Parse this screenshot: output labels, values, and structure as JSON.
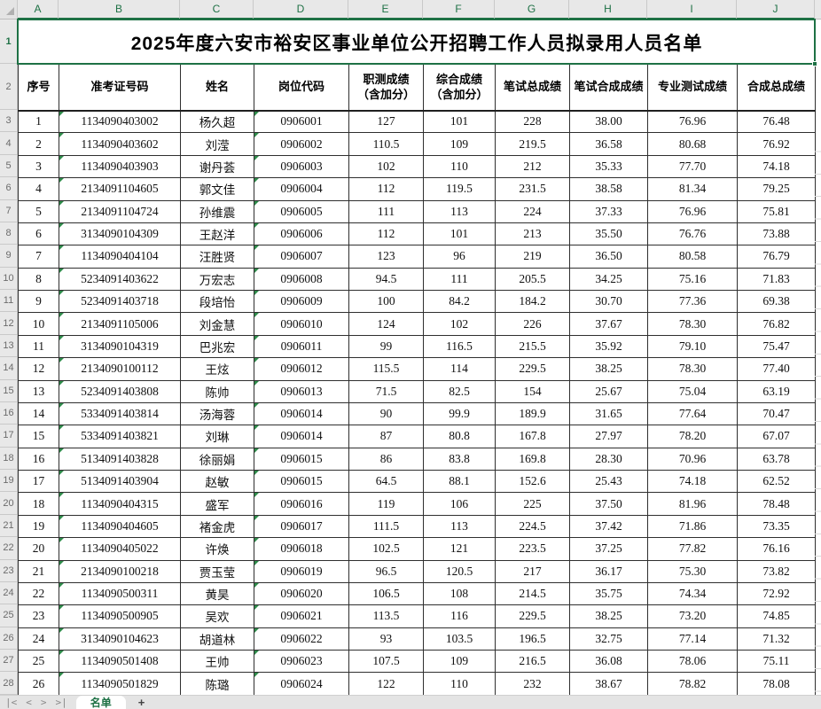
{
  "title": "2025年度六安市裕安区事业单位公开招聘工作人员拟录用人员名单",
  "columns": [
    "A",
    "B",
    "C",
    "D",
    "E",
    "F",
    "G",
    "H",
    "I",
    "J"
  ],
  "row_numbers": [
    "1",
    "2",
    "3",
    "4",
    "5",
    "6",
    "7",
    "8",
    "9",
    "10",
    "11",
    "12",
    "13",
    "14",
    "15",
    "16",
    "17",
    "18",
    "19",
    "20",
    "21",
    "22",
    "23",
    "24",
    "25",
    "26",
    "27",
    "28"
  ],
  "headers": [
    "序号",
    "准考证号码",
    "姓名",
    "岗位代码",
    "职测成绩\n（含加分）",
    "综合成绩\n（含加分）",
    "笔试总成绩",
    "笔试合成成绩",
    "专业测试成绩",
    "合成总成绩"
  ],
  "rows": [
    [
      "1",
      "1134090403002",
      "杨久超",
      "0906001",
      "127",
      "101",
      "228",
      "38.00",
      "76.96",
      "76.48"
    ],
    [
      "2",
      "1134090403602",
      "刘滢",
      "0906002",
      "110.5",
      "109",
      "219.5",
      "36.58",
      "80.68",
      "76.92"
    ],
    [
      "3",
      "1134090403903",
      "谢丹荟",
      "0906003",
      "102",
      "110",
      "212",
      "35.33",
      "77.70",
      "74.18"
    ],
    [
      "4",
      "2134091104605",
      "郭文佳",
      "0906004",
      "112",
      "119.5",
      "231.5",
      "38.58",
      "81.34",
      "79.25"
    ],
    [
      "5",
      "2134091104724",
      "孙维震",
      "0906005",
      "111",
      "113",
      "224",
      "37.33",
      "76.96",
      "75.81"
    ],
    [
      "6",
      "3134090104309",
      "王赵洋",
      "0906006",
      "112",
      "101",
      "213",
      "35.50",
      "76.76",
      "73.88"
    ],
    [
      "7",
      "1134090404104",
      "汪胜贤",
      "0906007",
      "123",
      "96",
      "219",
      "36.50",
      "80.58",
      "76.79"
    ],
    [
      "8",
      "5234091403622",
      "万宏志",
      "0906008",
      "94.5",
      "111",
      "205.5",
      "34.25",
      "75.16",
      "71.83"
    ],
    [
      "9",
      "5234091403718",
      "段培怡",
      "0906009",
      "100",
      "84.2",
      "184.2",
      "30.70",
      "77.36",
      "69.38"
    ],
    [
      "10",
      "2134091105006",
      "刘金慧",
      "0906010",
      "124",
      "102",
      "226",
      "37.67",
      "78.30",
      "76.82"
    ],
    [
      "11",
      "3134090104319",
      "巴兆宏",
      "0906011",
      "99",
      "116.5",
      "215.5",
      "35.92",
      "79.10",
      "75.47"
    ],
    [
      "12",
      "2134090100112",
      "王炫",
      "0906012",
      "115.5",
      "114",
      "229.5",
      "38.25",
      "78.30",
      "77.40"
    ],
    [
      "13",
      "5234091403808",
      "陈帅",
      "0906013",
      "71.5",
      "82.5",
      "154",
      "25.67",
      "75.04",
      "63.19"
    ],
    [
      "14",
      "5334091403814",
      "汤海蓉",
      "0906014",
      "90",
      "99.9",
      "189.9",
      "31.65",
      "77.64",
      "70.47"
    ],
    [
      "15",
      "5334091403821",
      "刘琳",
      "0906014",
      "87",
      "80.8",
      "167.8",
      "27.97",
      "78.20",
      "67.07"
    ],
    [
      "16",
      "5134091403828",
      "徐丽娟",
      "0906015",
      "86",
      "83.8",
      "169.8",
      "28.30",
      "70.96",
      "63.78"
    ],
    [
      "17",
      "5134091403904",
      "赵敏",
      "0906015",
      "64.5",
      "88.1",
      "152.6",
      "25.43",
      "74.18",
      "62.52"
    ],
    [
      "18",
      "1134090404315",
      "盛军",
      "0906016",
      "119",
      "106",
      "225",
      "37.50",
      "81.96",
      "78.48"
    ],
    [
      "19",
      "1134090404605",
      "褚金虎",
      "0906017",
      "111.5",
      "113",
      "224.5",
      "37.42",
      "71.86",
      "73.35"
    ],
    [
      "20",
      "1134090405022",
      "许焕",
      "0906018",
      "102.5",
      "121",
      "223.5",
      "37.25",
      "77.82",
      "76.16"
    ],
    [
      "21",
      "2134090100218",
      "贾玉莹",
      "0906019",
      "96.5",
      "120.5",
      "217",
      "36.17",
      "75.30",
      "73.82"
    ],
    [
      "22",
      "1134090500311",
      "黄昊",
      "0906020",
      "106.5",
      "108",
      "214.5",
      "35.75",
      "74.34",
      "72.92"
    ],
    [
      "23",
      "1134090500905",
      "吴欢",
      "0906021",
      "113.5",
      "116",
      "229.5",
      "38.25",
      "73.20",
      "74.85"
    ],
    [
      "24",
      "3134090104623",
      "胡道林",
      "0906022",
      "93",
      "103.5",
      "196.5",
      "32.75",
      "77.14",
      "71.32"
    ],
    [
      "25",
      "1134090501408",
      "王帅",
      "0906023",
      "107.5",
      "109",
      "216.5",
      "36.08",
      "78.06",
      "75.11"
    ],
    [
      "26",
      "1134090501829",
      "陈璐",
      "0906024",
      "122",
      "110",
      "232",
      "38.67",
      "78.82",
      "78.08"
    ]
  ],
  "sheet_bar": {
    "nav": [
      "|<",
      "<",
      ">",
      ">|"
    ],
    "active_tab": "名单",
    "add_label": "+"
  },
  "colors": {
    "accent_green": "#1e7145",
    "triangle_indicator": "#2e8b4a",
    "header_strip_bg": "#e8e8e8",
    "grid_border": "#2f2f2f"
  }
}
